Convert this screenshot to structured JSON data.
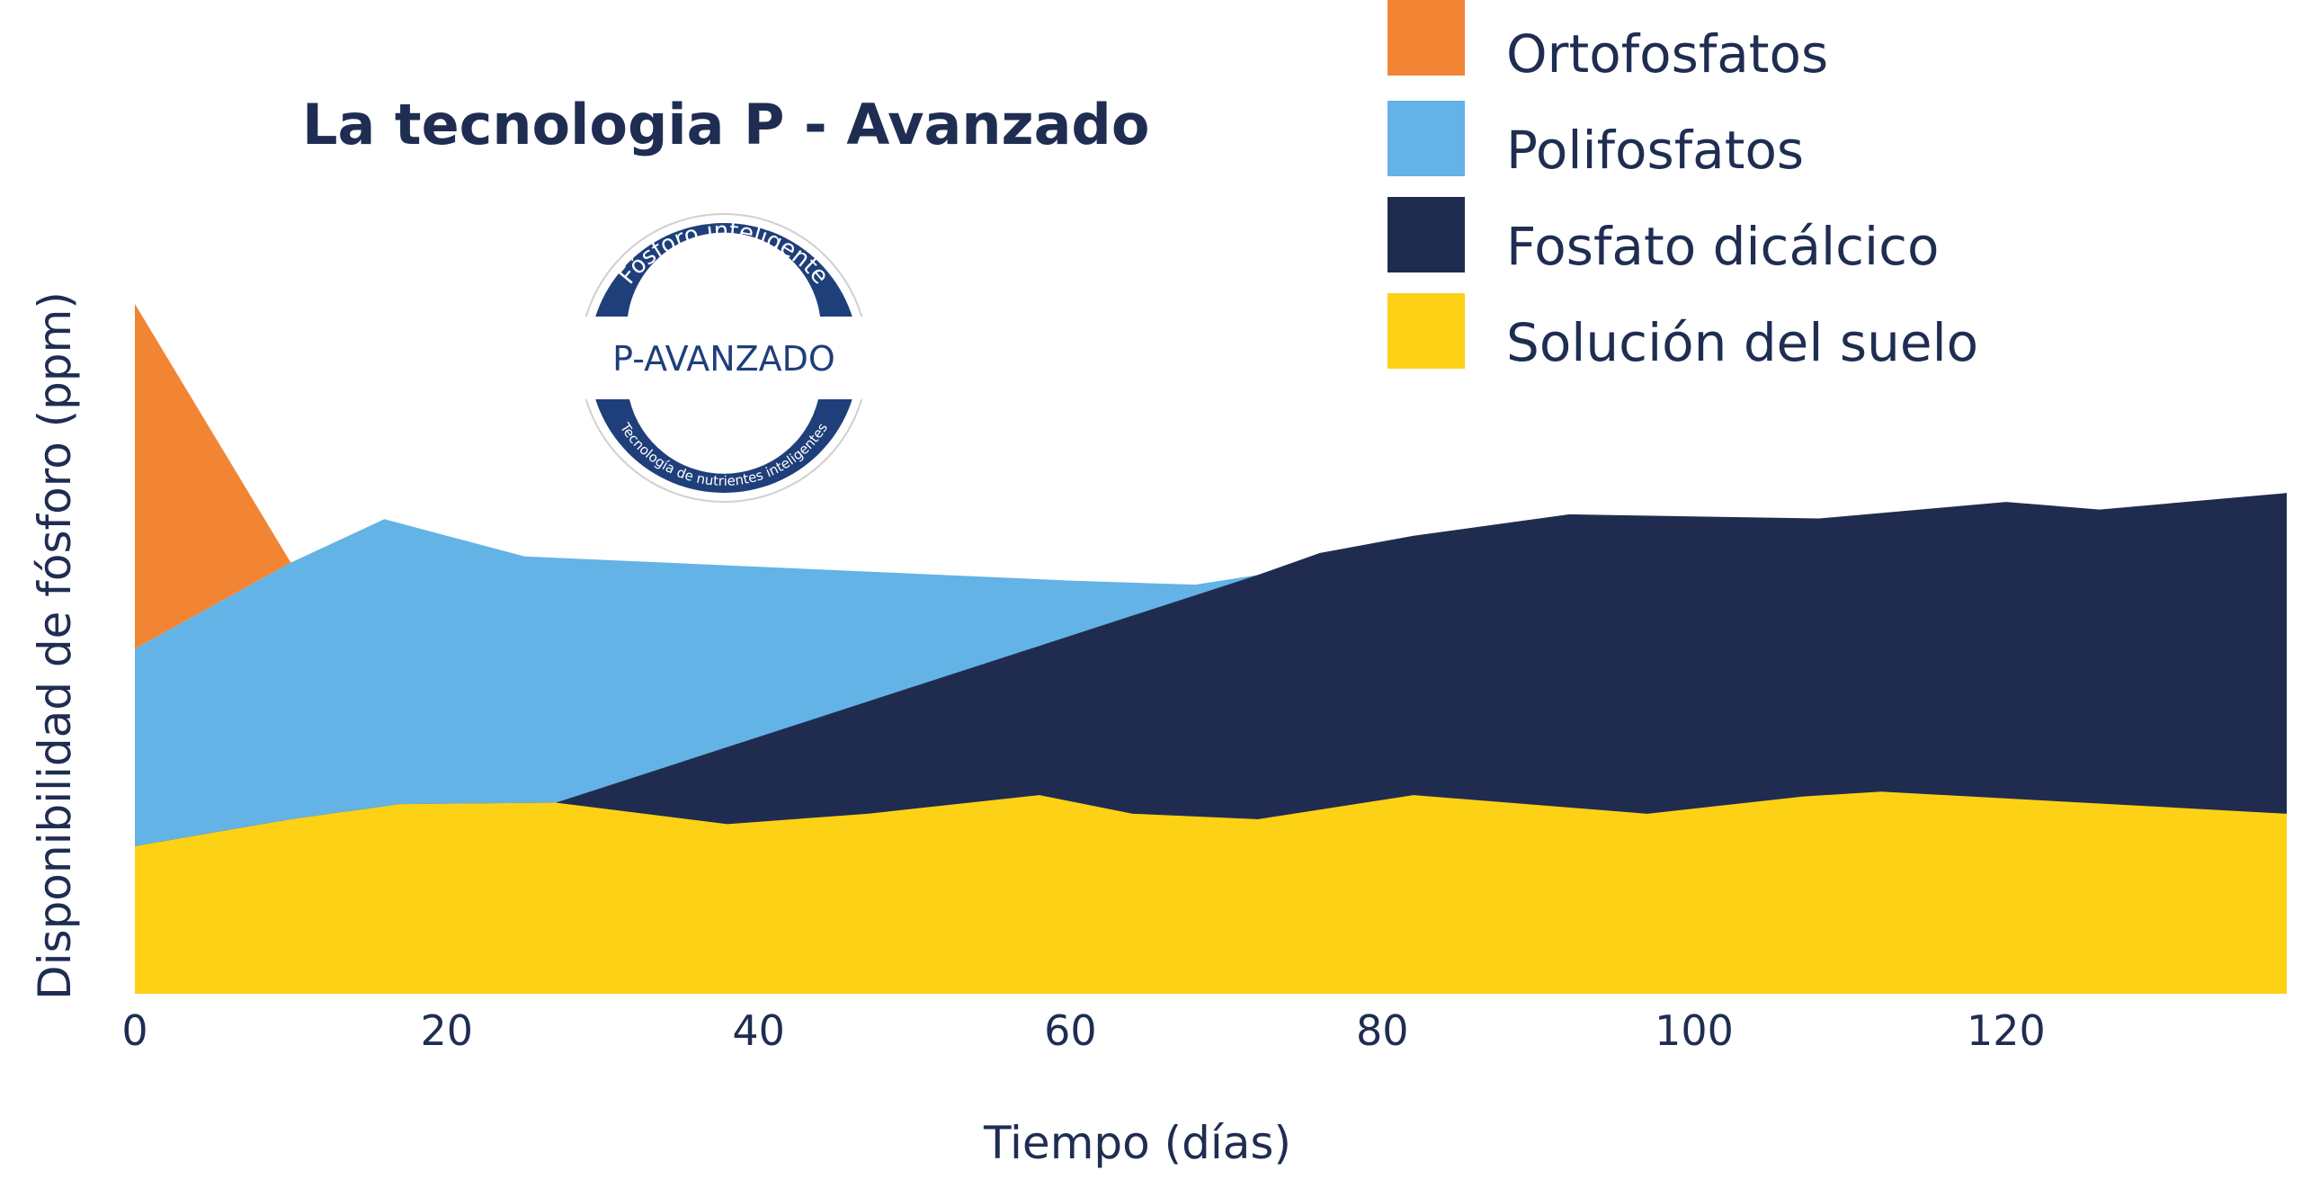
{
  "chart_data": {
    "type": "area",
    "title": "La tecnologia P - Avanzado",
    "xlabel": "Tiempo (días)",
    "ylabel": "Disponibilidad de fósforo (ppm)",
    "xlim": [
      0,
      138
    ],
    "ylim": [
      0,
      100
    ],
    "xticks": [
      0,
      20,
      40,
      60,
      80,
      100,
      120
    ],
    "grid": false,
    "legend_position": "top-right",
    "series": [
      {
        "name": "Solución del suelo",
        "color": "#fcd116",
        "points": [
          [
            0,
            21.4
          ],
          [
            10,
            25.3
          ],
          [
            17,
            27.5
          ],
          [
            27,
            27.7
          ],
          [
            38,
            24.6
          ],
          [
            47,
            26.1
          ],
          [
            58,
            28.8
          ],
          [
            64,
            26.1
          ],
          [
            72,
            25.3
          ],
          [
            82,
            28.8
          ],
          [
            97,
            26.1
          ],
          [
            107,
            28.6
          ],
          [
            112,
            29.3
          ],
          [
            138,
            26.1
          ]
        ]
      },
      {
        "name": "Fosfato dicálcico",
        "color": "#202c4f",
        "points": [
          [
            0,
            21.4
          ],
          [
            10,
            25.3
          ],
          [
            17,
            27.5
          ],
          [
            27,
            27.7
          ],
          [
            72,
            60.7
          ],
          [
            76,
            63.9
          ],
          [
            82,
            66.4
          ],
          [
            92,
            69.5
          ],
          [
            108,
            68.9
          ],
          [
            120,
            71.3
          ],
          [
            126,
            70.2
          ],
          [
            138,
            72.6
          ]
        ]
      },
      {
        "name": "Polifosfatos",
        "color": "#63b3e6",
        "points": [
          [
            0,
            50.0
          ],
          [
            10,
            62.5
          ],
          [
            16,
            68.8
          ],
          [
            25,
            63.4
          ],
          [
            60,
            59.9
          ],
          [
            68,
            59.3
          ],
          [
            72,
            60.7
          ]
        ]
      },
      {
        "name": "Ortofosfatos",
        "color": "#f28534",
        "points": [
          [
            0,
            100
          ],
          [
            10,
            62.5
          ],
          [
            0,
            50.0
          ]
        ]
      }
    ]
  },
  "legend": [
    {
      "label": "Ortofosfatos",
      "color": "#f28534"
    },
    {
      "label": "Polifosfatos",
      "color": "#63b3e6"
    },
    {
      "label": "Fosfato dicálcico",
      "color": "#202c4f"
    },
    {
      "label": "Solución del suelo",
      "color": "#fcd116"
    }
  ],
  "badge": {
    "top_text": "Fósforo inteligente",
    "main_text": "P-AVANZADO",
    "bottom_text": "Tecnología de nutrientes inteligentes",
    "ring_color": "#1f3f7a"
  },
  "colors": {
    "text": "#1f2d52",
    "background": "#ffffff"
  }
}
